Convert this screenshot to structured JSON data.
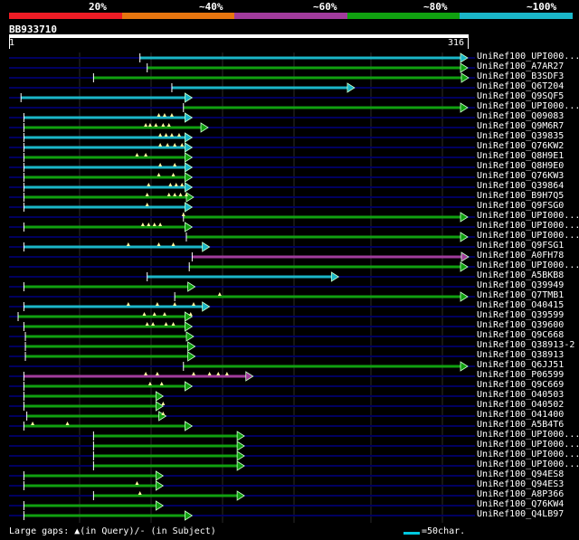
{
  "scale": {
    "labels": [
      "20%",
      "~40%",
      "~60%",
      "~80%",
      "~100%"
    ],
    "colors": [
      "#ee1c25",
      "#e8760f",
      "#a13b9c",
      "#10a010",
      "#1ab6c8"
    ]
  },
  "query": {
    "id": "BB933710",
    "start": "1",
    "end": "316",
    "length": 316
  },
  "colors": {
    "identity_colors": [
      "#ee1c25",
      "#e8760f",
      "#a13b9c",
      "#10a010",
      "#1ab6c8"
    ],
    "background": "#000000",
    "row_line": "#000060",
    "gap_marker": "#fff8a0"
  },
  "hits": [
    {
      "name": "UniRef100_UPI000...",
      "start": 90,
      "end": 316,
      "color": "#1ab6c8",
      "gaps": []
    },
    {
      "name": "UniRef100_A7AR27",
      "start": 95,
      "end": 316,
      "color": "#10a010",
      "gaps": []
    },
    {
      "name": "UniRef100_B3SDF3",
      "start": 58,
      "end": 318,
      "color": "#10a010",
      "gaps": []
    },
    {
      "name": "UniRef100_Q6T204",
      "start": 112,
      "end": 238,
      "color": "#1ab6c8",
      "gaps": []
    },
    {
      "name": "UniRef100_Q9SQF5",
      "start": 8,
      "end": 126,
      "color": "#1ab6c8",
      "gaps": []
    },
    {
      "name": "UniRef100_UPI000...",
      "start": 120,
      "end": 316,
      "color": "#10a010",
      "gaps": []
    },
    {
      "name": "UniRef100_Q09083",
      "start": 10,
      "end": 126,
      "color": "#1ab6c8",
      "gaps": [
        103,
        107,
        112
      ]
    },
    {
      "name": "UniRef100_Q9M6R7",
      "start": 10,
      "end": 137,
      "color": "#10a010",
      "gaps": [
        94,
        97,
        101,
        106,
        110
      ]
    },
    {
      "name": "UniRef100_Q39835",
      "start": 10,
      "end": 126,
      "color": "#1ab6c8",
      "gaps": [
        104,
        108,
        112,
        117
      ]
    },
    {
      "name": "UniRef100_Q76KW2",
      "start": 10,
      "end": 126,
      "color": "#1ab6c8",
      "gaps": [
        104,
        109,
        114,
        119
      ]
    },
    {
      "name": "UniRef100_Q8H9E1",
      "start": 10,
      "end": 126,
      "color": "#10a010",
      "gaps": [
        88,
        94
      ]
    },
    {
      "name": "UniRef100_Q8H9E0",
      "start": 10,
      "end": 126,
      "color": "#1ab6c8",
      "gaps": [
        104,
        114
      ]
    },
    {
      "name": "UniRef100_Q76KW3",
      "start": 10,
      "end": 126,
      "color": "#10a010",
      "gaps": [
        103,
        113
      ]
    },
    {
      "name": "UniRef100_Q39864",
      "start": 10,
      "end": 126,
      "color": "#1ab6c8",
      "gaps": [
        96,
        111,
        115,
        119
      ]
    },
    {
      "name": "UniRef100_B9H7Q5",
      "start": 10,
      "end": 127,
      "color": "#10a010",
      "gaps": [
        95,
        110,
        114,
        118,
        122
      ]
    },
    {
      "name": "UniRef100_Q9FSG0",
      "start": 10,
      "end": 126,
      "color": "#1ab6c8",
      "gaps": [
        95
      ]
    },
    {
      "name": "UniRef100_UPI000...",
      "start": 120,
      "end": 316,
      "color": "#10a010",
      "gaps": [
        120
      ]
    },
    {
      "name": "UniRef100_UPI000...",
      "start": 10,
      "end": 126,
      "color": "#10a010",
      "gaps": [
        92,
        96,
        100,
        104
      ]
    },
    {
      "name": "UniRef100_UPI000...",
      "start": 122,
      "end": 316,
      "color": "#10a010",
      "gaps": []
    },
    {
      "name": "UniRef100_Q9FSG1",
      "start": 10,
      "end": 138,
      "color": "#1ab6c8",
      "gaps": [
        82,
        103,
        113
      ]
    },
    {
      "name": "UniRef100_A0FH78",
      "start": 126,
      "end": 326,
      "color": "#a13b9c",
      "gaps": []
    },
    {
      "name": "UniRef100_UPI000...",
      "start": 124,
      "end": 316,
      "color": "#10a010",
      "gaps": []
    },
    {
      "name": "UniRef100_A5BKB8",
      "start": 95,
      "end": 227,
      "color": "#1ab6c8",
      "gaps": []
    },
    {
      "name": "UniRef100_Q39949",
      "start": 10,
      "end": 128,
      "color": "#10a010",
      "gaps": []
    },
    {
      "name": "UniRef100_Q7TMB1",
      "start": 114,
      "end": 316,
      "color": "#10a010",
      "gaps": [
        145
      ]
    },
    {
      "name": "UniRef100_O40415",
      "start": 10,
      "end": 138,
      "color": "#1ab6c8",
      "gaps": [
        82,
        102,
        114,
        127
      ]
    },
    {
      "name": "UniRef100_Q39599",
      "start": 6,
      "end": 126,
      "color": "#10a010",
      "gaps": [
        93,
        100,
        107,
        125
      ]
    },
    {
      "name": "UniRef100_Q39600",
      "start": 10,
      "end": 126,
      "color": "#10a010",
      "gaps": [
        95,
        99,
        108,
        113
      ]
    },
    {
      "name": "UniRef100_Q9C668",
      "start": 11,
      "end": 127,
      "color": "#10a010",
      "gaps": []
    },
    {
      "name": "UniRef100_Q38913-2",
      "start": 11,
      "end": 128,
      "color": "#10a010",
      "gaps": []
    },
    {
      "name": "UniRef100_Q38913",
      "start": 11,
      "end": 128,
      "color": "#10a010",
      "gaps": []
    },
    {
      "name": "UniRef100_Q6JJ51",
      "start": 120,
      "end": 316,
      "color": "#10a010",
      "gaps": []
    },
    {
      "name": "UniRef100_P06599",
      "start": 10,
      "end": 168,
      "color": "#a13b9c",
      "gaps": [
        94,
        102,
        127,
        138,
        144,
        150
      ]
    },
    {
      "name": "UniRef100_Q9C669",
      "start": 10,
      "end": 126,
      "color": "#10a010",
      "gaps": [
        97,
        105
      ]
    },
    {
      "name": "UniRef100_O40503",
      "start": 10,
      "end": 106,
      "color": "#10a010",
      "gaps": []
    },
    {
      "name": "UniRef100_O40502",
      "start": 10,
      "end": 106,
      "color": "#10a010",
      "gaps": [
        106
      ]
    },
    {
      "name": "UniRef100_O41400",
      "start": 12,
      "end": 108,
      "color": "#10a010",
      "gaps": [
        106
      ]
    },
    {
      "name": "UniRef100_A5B4T6",
      "start": 10,
      "end": 126,
      "color": "#10a010",
      "gaps": [
        16,
        40
      ]
    },
    {
      "name": "UniRef100_UPI000...",
      "start": 58,
      "end": 162,
      "color": "#10a010",
      "gaps": []
    },
    {
      "name": "UniRef100_UPI000...",
      "start": 58,
      "end": 162,
      "color": "#10a010",
      "gaps": []
    },
    {
      "name": "UniRef100_UPI000...",
      "start": 58,
      "end": 162,
      "color": "#10a010",
      "gaps": []
    },
    {
      "name": "UniRef100_UPI000...",
      "start": 58,
      "end": 162,
      "color": "#10a010",
      "gaps": []
    },
    {
      "name": "UniRef100_Q94ES8",
      "start": 10,
      "end": 106,
      "color": "#10a010",
      "gaps": []
    },
    {
      "name": "UniRef100_Q94ES3",
      "start": 10,
      "end": 106,
      "color": "#10a010",
      "gaps": [
        88
      ]
    },
    {
      "name": "UniRef100_A8P366",
      "start": 58,
      "end": 162,
      "color": "#10a010",
      "gaps": [
        90
      ]
    },
    {
      "name": "UniRef100_Q76KW4",
      "start": 10,
      "end": 106,
      "color": "#10a010",
      "gaps": []
    },
    {
      "name": "UniRef100_Q4LB97",
      "start": 10,
      "end": 126,
      "color": "#10a010",
      "gaps": []
    }
  ],
  "footer": {
    "text": "Large gaps: ▲(in Query)/- (in Subject)",
    "scale_legend": "=50char."
  }
}
